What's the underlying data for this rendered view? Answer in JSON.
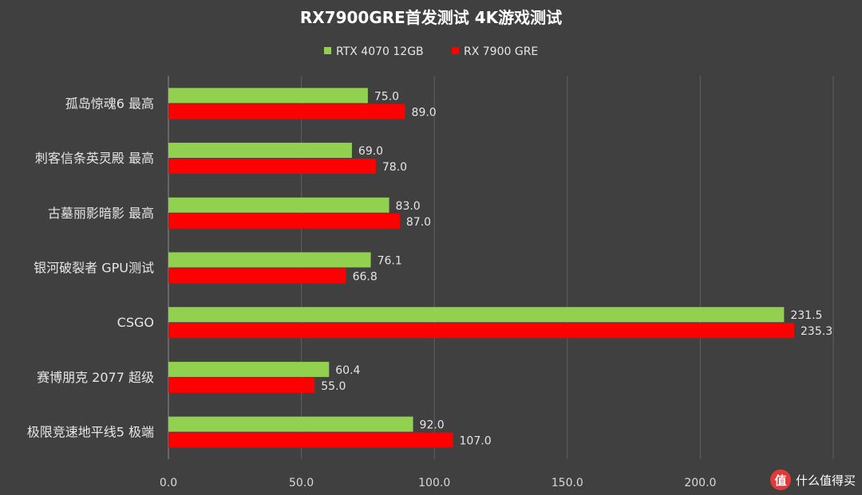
{
  "chart_data": {
    "type": "bar",
    "orientation": "horizontal",
    "title": "RX7900GRE首发测试 4K游戏测试",
    "categories": [
      "孤岛惊魂6 最高",
      "刺客信条英灵殿 最高",
      "古墓丽影暗影 最高",
      "银河破裂者 GPU测试",
      "CSGO",
      "赛博朋克 2077 超级",
      "极限竞速地平线5 极端"
    ],
    "series": [
      {
        "name": "RTX 4070 12GB",
        "color": "#92d050",
        "values": [
          75.0,
          69.0,
          83.0,
          76.1,
          231.5,
          60.4,
          92.0
        ],
        "labels": [
          "75.0",
          "69.0",
          "83.0",
          "76.1",
          "231.5",
          "60.4",
          "92.0"
        ]
      },
      {
        "name": "RX 7900 GRE",
        "color": "#ff0000",
        "values": [
          89.0,
          78.0,
          87.0,
          66.8,
          235.3,
          55.0,
          107.0
        ],
        "labels": [
          "89.0",
          "78.0",
          "87.0",
          "66.8",
          "235.3",
          "55.0",
          "107.0"
        ]
      }
    ],
    "xlim": [
      0,
      250
    ],
    "xticks": [
      0,
      50,
      100,
      150,
      200
    ],
    "xtick_labels": [
      "0.0",
      "50.0",
      "100.0",
      "150.0",
      "200.0"
    ],
    "grid": true,
    "legend_position": "top"
  },
  "watermark": {
    "logo_text": "值",
    "text": "什么值得买"
  }
}
